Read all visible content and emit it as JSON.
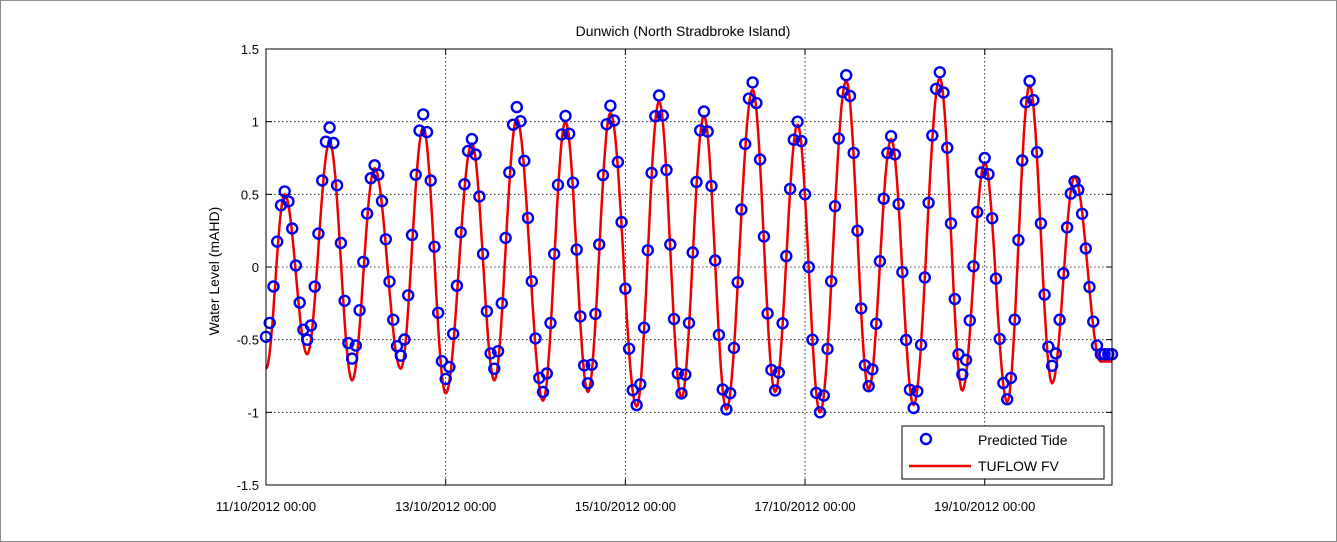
{
  "chart_data": {
    "type": "line",
    "title": "Dunwich (North Stradbroke Island)",
    "xlabel": "",
    "ylabel": "Water Level (mAHD)",
    "xlim": [
      "11/10/2012 00:00",
      "20/10/2012 10:00"
    ],
    "ylim": [
      -1.5,
      1.5
    ],
    "x_tick_labels": [
      "11/10/2012 00:00",
      "13/10/2012 00:00",
      "15/10/2012 00:00",
      "17/10/2012 00:00",
      "19/10/2012 00:00"
    ],
    "y_tick_labels": [
      "-1.5",
      "-1",
      "-0.5",
      "0",
      "0.5",
      "1",
      "1.5"
    ],
    "grid": true,
    "legend_position": "bottom-right",
    "colors": {
      "predicted": "#0000ee",
      "model": "#ee0000"
    },
    "series_meta": [
      {
        "name": "Predicted Tide",
        "marker": "circle",
        "line": "none"
      },
      {
        "name": "TUFLOW FV",
        "marker": "none",
        "line": "solid"
      }
    ],
    "time_step_hours": 1,
    "tide_extrema": {
      "times": [
        "11/10/2012 00:00",
        "11/10/2012 05:00",
        "11/10/2012 11:00",
        "11/10/2012 17:00",
        "11/10/2012 23:00",
        "12/10/2012 05:00",
        "12/10/2012 12:00",
        "12/10/2012 18:00",
        "13/10/2012 00:00",
        "13/10/2012 07:00",
        "13/10/2012 13:00",
        "13/10/2012 19:00",
        "14/10/2012 02:00",
        "14/10/2012 08:00",
        "14/10/2012 14:00",
        "14/10/2012 20:00",
        "15/10/2012 03:00",
        "15/10/2012 09:00",
        "15/10/2012 15:00",
        "15/10/2012 21:00",
        "16/10/2012 03:00",
        "16/10/2012 10:00",
        "16/10/2012 16:00",
        "16/10/2012 22:00",
        "17/10/2012 04:00",
        "17/10/2012 11:00",
        "17/10/2012 17:00",
        "17/10/2012 23:00",
        "18/10/2012 05:00",
        "18/10/2012 12:00",
        "18/10/2012 18:00",
        "19/10/2012 00:00",
        "19/10/2012 06:00",
        "19/10/2012 12:00",
        "19/10/2012 18:00",
        "20/10/2012 00:00",
        "20/10/2012 07:00"
      ],
      "predicted": [
        -0.48,
        0.52,
        -0.5,
        0.96,
        -0.63,
        0.7,
        -0.61,
        1.05,
        -0.77,
        0.88,
        -0.7,
        1.1,
        -0.86,
        1.04,
        -0.8,
        1.11,
        -0.95,
        1.18,
        -0.87,
        1.07,
        -0.98,
        1.27,
        -0.85,
        1.0,
        -1.0,
        1.32,
        -0.82,
        0.9,
        -0.97,
        1.34,
        -0.74,
        0.75,
        -0.91,
        1.28,
        -0.68,
        0.59,
        -0.6
      ],
      "modeled": [
        -0.7,
        0.5,
        -0.6,
        0.86,
        -0.78,
        0.68,
        -0.7,
        0.96,
        -0.87,
        0.85,
        -0.78,
        1.02,
        -0.92,
        1.0,
        -0.86,
        1.06,
        -0.96,
        1.14,
        -0.9,
        1.04,
        -0.98,
        1.22,
        -0.86,
        0.98,
        -1.0,
        1.28,
        -0.84,
        0.88,
        -0.95,
        1.3,
        -0.85,
        0.72,
        -0.93,
        1.25,
        -0.8,
        0.62,
        -0.65
      ]
    }
  }
}
